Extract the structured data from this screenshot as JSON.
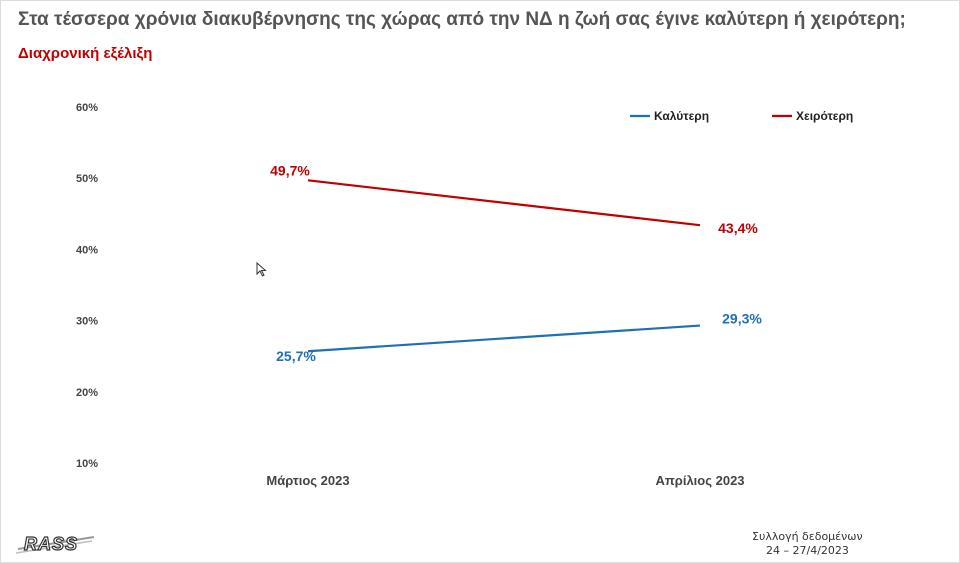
{
  "header": {
    "title": "Στα τέσσερα χρόνια διακυβέρνησης της χώρας από την ΝΔ η ζωή σας έγινε καλύτερη ή χειρότερη;",
    "subtitle": "Διαχρονική εξέλιξη"
  },
  "chart_data": {
    "type": "line",
    "categories": [
      "Μάρτιος 2023",
      "Απρίλιος 2023"
    ],
    "series": [
      {
        "name": "Καλύτερη",
        "values": [
          25.7,
          29.3
        ],
        "labels": [
          "25,7%",
          "29,3%"
        ],
        "color": "#1f6fb8"
      },
      {
        "name": "Χειρότερη",
        "values": [
          49.7,
          43.4
        ],
        "labels": [
          "49,7%",
          "43,4%"
        ],
        "color": "#c00000"
      }
    ],
    "y_ticks": [
      "10%",
      "20%",
      "30%",
      "40%",
      "50%",
      "60%"
    ],
    "y_tick_values": [
      10,
      20,
      30,
      40,
      50,
      60
    ],
    "ylim": [
      10,
      60
    ],
    "grid": false,
    "legend": "top-right"
  },
  "footer": {
    "note_line1": "Συλλογή δεδομένων",
    "note_line2": "24 – 27/4/2023",
    "logo_text": "RASS"
  }
}
